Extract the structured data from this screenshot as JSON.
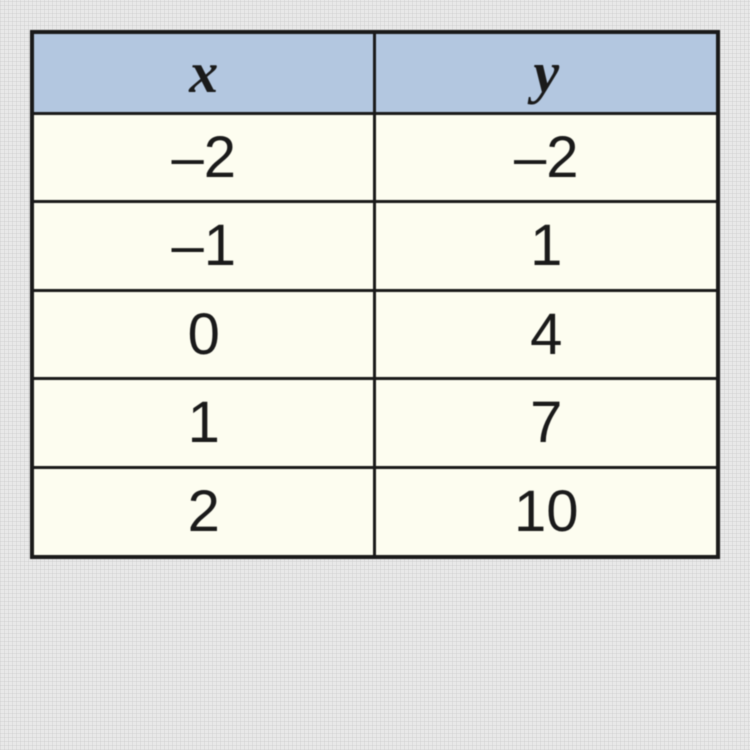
{
  "table": {
    "type": "table",
    "columns": [
      "x",
      "y"
    ],
    "rows": [
      [
        "–2",
        "–2"
      ],
      [
        "–1",
        "1"
      ],
      [
        "0",
        "4"
      ],
      [
        "1",
        "7"
      ],
      [
        "2",
        "10"
      ]
    ],
    "header_background_color": "#b3c7e0",
    "cell_background_color": "#fdfdf0",
    "border_color": "#1a1a1a",
    "page_background_color": "#e8e8e8",
    "header_fontsize": 58,
    "cell_fontsize": 58,
    "header_fontstyle": "italic",
    "header_fontweight": "bold",
    "border_width_outer": 4,
    "border_width_inner": 3,
    "column_count": 2,
    "row_count": 5
  }
}
